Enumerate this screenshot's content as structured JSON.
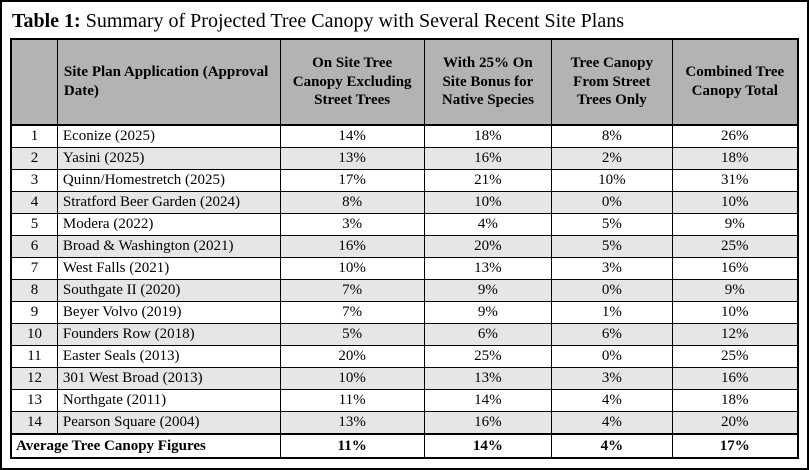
{
  "title": {
    "label": "Table 1:",
    "text": " Summary of Projected Tree Canopy with Several Recent Site Plans"
  },
  "colors": {
    "header_bg": "#b3b3b3",
    "stripe_bg": "#e6e6e6",
    "border": "#000000",
    "text": "#000000"
  },
  "table": {
    "headers": {
      "corner": "",
      "site_plan": "Site Plan Application (Approval Date)",
      "onsite": "On Site Tree Canopy Excluding Street Trees",
      "bonus": "With 25% On Site Bonus for Native Species",
      "street": "Tree Canopy From Street Trees Only",
      "combined": "Combined Tree Canopy Total"
    },
    "rows": [
      {
        "num": "1",
        "name": "Econize (2025)",
        "values": [
          "14%",
          "18%",
          "8%",
          "26%"
        ]
      },
      {
        "num": "2",
        "name": "Yasini (2025)",
        "values": [
          "13%",
          "16%",
          "2%",
          "18%"
        ]
      },
      {
        "num": "3",
        "name": "Quinn/Homestretch (2025)",
        "values": [
          "17%",
          "21%",
          "10%",
          "31%"
        ]
      },
      {
        "num": "4",
        "name": "Stratford Beer Garden (2024)",
        "values": [
          "8%",
          "10%",
          "0%",
          "10%"
        ]
      },
      {
        "num": "5",
        "name": "Modera (2022)",
        "values": [
          "3%",
          "4%",
          "5%",
          "9%"
        ]
      },
      {
        "num": "6",
        "name": "Broad & Washington (2021)",
        "values": [
          "16%",
          "20%",
          "5%",
          "25%"
        ]
      },
      {
        "num": "7",
        "name": "West Falls (2021)",
        "values": [
          "10%",
          "13%",
          "3%",
          "16%"
        ]
      },
      {
        "num": "8",
        "name": "Southgate II (2020)",
        "values": [
          "7%",
          "9%",
          "0%",
          "9%"
        ]
      },
      {
        "num": "9",
        "name": "Beyer Volvo (2019)",
        "values": [
          "7%",
          "9%",
          "1%",
          "10%"
        ]
      },
      {
        "num": "10",
        "name": "Founders Row (2018)",
        "values": [
          "5%",
          "6%",
          "6%",
          "12%"
        ]
      },
      {
        "num": "11",
        "name": "Easter Seals (2013)",
        "values": [
          "20%",
          "25%",
          "0%",
          "25%"
        ]
      },
      {
        "num": "12",
        "name": "301 West Broad (2013)",
        "values": [
          "10%",
          "13%",
          "3%",
          "16%"
        ]
      },
      {
        "num": "13",
        "name": "Northgate (2011)",
        "values": [
          "11%",
          "14%",
          "4%",
          "18%"
        ]
      },
      {
        "num": "14",
        "name": "Pearson Square (2004)",
        "values": [
          "13%",
          "16%",
          "4%",
          "20%"
        ]
      }
    ],
    "footer": {
      "label": "Average Tree Canopy Figures",
      "values": [
        "11%",
        "14%",
        "4%",
        "17%"
      ]
    }
  }
}
